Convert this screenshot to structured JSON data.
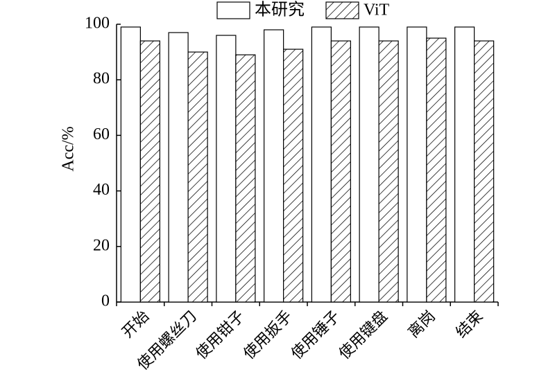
{
  "chart_data": {
    "type": "bar",
    "y_label": "Acc/%",
    "categories": [
      "开始",
      "使用螺丝刀",
      "使用钳子",
      "使用扳手",
      "使用锤子",
      "使用键盘",
      "离岗",
      "结束"
    ],
    "series": [
      {
        "name": "本研究",
        "color": "#ffffff",
        "hatch": false,
        "values": [
          99,
          97,
          96,
          98,
          99,
          99,
          99,
          99
        ]
      },
      {
        "name": "ViT",
        "color": "#ffffff",
        "hatch": true,
        "values": [
          94,
          90,
          89,
          91,
          94,
          94,
          95,
          94
        ]
      }
    ],
    "ylim": [
      0,
      100
    ],
    "yticks": [
      0,
      20,
      40,
      60,
      80,
      100
    ],
    "grid": false
  }
}
